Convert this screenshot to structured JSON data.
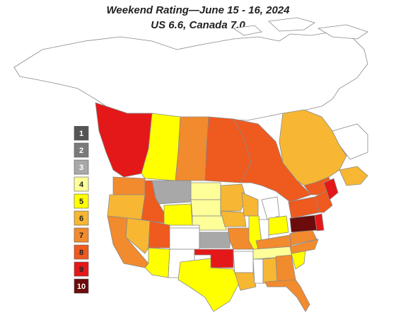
{
  "map": {
    "title": "Weekend Rating—June 15 - 16, 2024",
    "subtitle": "US 6.6, Canada 7.0"
  },
  "legend": {
    "items": [
      {
        "label": "1",
        "color": "#555555"
      },
      {
        "label": "2",
        "color": "#7a7a7a"
      },
      {
        "label": "3",
        "color": "#a8a8a8"
      },
      {
        "label": "4",
        "color": "#ffff99"
      },
      {
        "label": "5",
        "color": "#ffff00"
      },
      {
        "label": "6",
        "color": "#f7b733"
      },
      {
        "label": "7",
        "color": "#f28a2e"
      },
      {
        "label": "8",
        "color": "#ef5a1e"
      },
      {
        "label": "9",
        "color": "#e41818"
      },
      {
        "label": "10",
        "color": "#6b0b0b"
      }
    ]
  },
  "colors": {
    "land_outline": "#8a8a8a",
    "water": "#ffffff",
    "unrated_land": "#ffffff"
  }
}
